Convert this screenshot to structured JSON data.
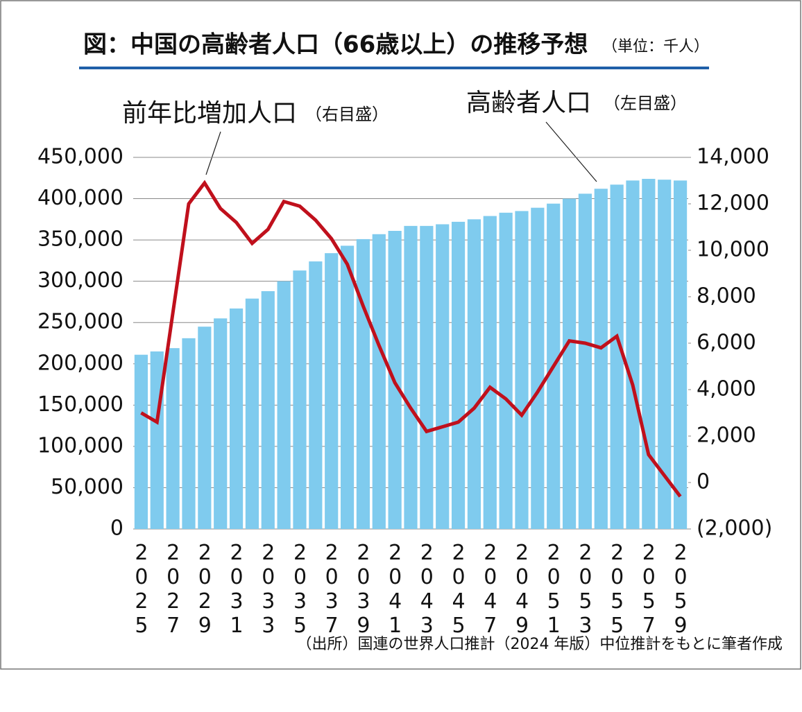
{
  "chart_data": {
    "type": "bar-line",
    "title": "図：中国の高齢者人口（66歳以上）の推移予想",
    "unit_note": "（単位：千人）",
    "annotations": [
      {
        "text": "前年比増加人口",
        "note": "（右目盛）"
      },
      {
        "text": "高齢者人口",
        "note": "（左目盛）"
      }
    ],
    "source": "（出所）国連の世界人口推計（2024 年版）中位推計をもとに筆者作成",
    "categories": [
      "2025",
      null,
      "2027",
      null,
      "2029",
      null,
      "2031",
      null,
      "2033",
      null,
      "2035",
      null,
      "2037",
      null,
      "2039",
      null,
      "2041",
      null,
      "2043",
      null,
      "2045",
      null,
      "2047",
      null,
      "2049",
      null,
      "2051",
      null,
      "2053",
      null,
      "2055",
      null,
      "2057",
      null,
      "2059"
    ],
    "series": [
      {
        "name": "高齢者人口",
        "type": "bar",
        "color": "#7fcbee",
        "values": [
          211000,
          215000,
          219000,
          231000,
          245000,
          255000,
          267000,
          279000,
          288000,
          300000,
          313000,
          324000,
          334000,
          343000,
          351000,
          357000,
          361000,
          367000,
          367000,
          369000,
          372000,
          375000,
          379000,
          383000,
          385000,
          389000,
          394000,
          400000,
          406000,
          412000,
          417000,
          422000,
          424000,
          423000,
          422000
        ]
      },
      {
        "name": "前年比増加人口",
        "type": "line",
        "axis": "y2",
        "color": "#c0101c",
        "values": [
          3000,
          2600,
          7300,
          12000,
          12900,
          11800,
          11200,
          10300,
          10900,
          12100,
          11900,
          11300,
          10500,
          9400,
          7600,
          5900,
          4300,
          3200,
          2200,
          2400,
          2600,
          3200,
          4100,
          3600,
          2900,
          3900,
          5000,
          6100,
          6000,
          5800,
          6300,
          4200,
          1200,
          300,
          -600
        ]
      }
    ],
    "ylim": [
      0,
      450000
    ],
    "yticks": [
      0,
      {
        "value": 50000,
        "label": "50,000"
      },
      {
        "value": 100000,
        "label": "100,000"
      },
      {
        "value": 150000,
        "label": "150,000"
      },
      {
        "value": 200000,
        "label": "200,000"
      },
      {
        "value": 250000,
        "label": "250,000"
      },
      {
        "value": 300000,
        "label": "300,000"
      },
      {
        "value": 350000,
        "label": "350,000"
      },
      {
        "value": 400000,
        "label": "400,000"
      },
      {
        "value": 450000,
        "label": "450,000"
      }
    ],
    "y2lim": [
      -2000,
      14000
    ],
    "y2ticks": [
      {
        "value": -2000,
        "label": "(2,000)"
      },
      0,
      {
        "value": 2000,
        "label": "2,000"
      },
      {
        "value": 4000,
        "label": "4,000"
      },
      {
        "value": 6000,
        "label": "6,000"
      },
      {
        "value": 8000,
        "label": "8,000"
      },
      {
        "value": 10000,
        "label": "10,000"
      },
      {
        "value": 12000,
        "label": "12,000"
      },
      {
        "value": 14000,
        "label": "14,000"
      }
    ],
    "grid": true
  }
}
